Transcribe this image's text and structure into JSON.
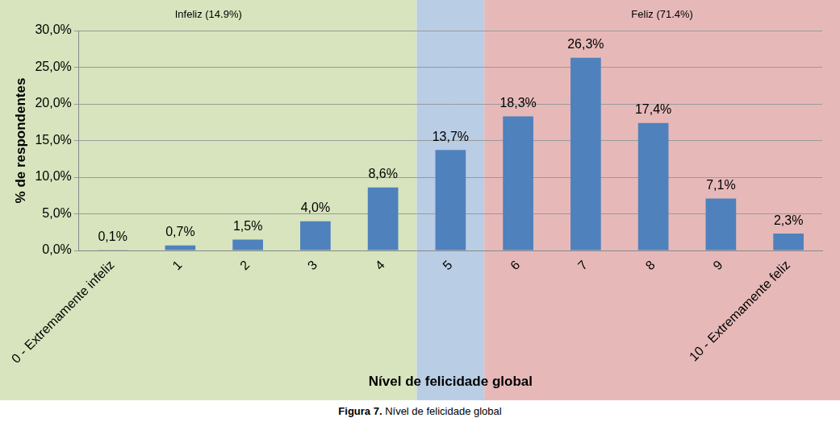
{
  "chart_data": {
    "type": "bar",
    "categories": [
      "0 - Extremamente infeliz",
      "1",
      "2",
      "3",
      "4",
      "5",
      "6",
      "7",
      "8",
      "9",
      "10 - Extremamente feliz"
    ],
    "values": [
      0.1,
      0.7,
      1.5,
      4.0,
      8.6,
      13.7,
      18.3,
      26.3,
      17.4,
      7.1,
      2.3
    ],
    "value_labels": [
      "0,1%",
      "0,7%",
      "1,5%",
      "4,0%",
      "8,6%",
      "13,7%",
      "18,3%",
      "26,3%",
      "17,4%",
      "7,1%",
      "2,3%"
    ],
    "color": "#4f81bd",
    "data_labels": true,
    "grid": true,
    "x_label": "Nível de felicidade global",
    "y_label": "% de respondentes",
    "ylim": [
      0,
      30
    ],
    "yticks": [
      {
        "value": 0,
        "label": "0,0%"
      },
      {
        "value": 5,
        "label": "5,0%"
      },
      {
        "value": 10,
        "label": "10,0%"
      },
      {
        "value": 15,
        "label": "15,0%"
      },
      {
        "value": 20,
        "label": "20,0%"
      },
      {
        "value": 25,
        "label": "25,0%"
      },
      {
        "value": 30,
        "label": "30,0%"
      }
    ],
    "regions": [
      {
        "label": "Infeliz (14.9%)",
        "start": "0 - Extremamente infeliz",
        "end": "4",
        "color": "#d7e4bd"
      },
      {
        "start": "5",
        "end": "5",
        "color": "#b9cde5"
      },
      {
        "label": "Feliz (71.4%)",
        "start": "6",
        "end": "10 - Extremamente feliz",
        "color": "#e6b9b8"
      }
    ],
    "caption": "Figura 7. Nível de felicidade global"
  }
}
